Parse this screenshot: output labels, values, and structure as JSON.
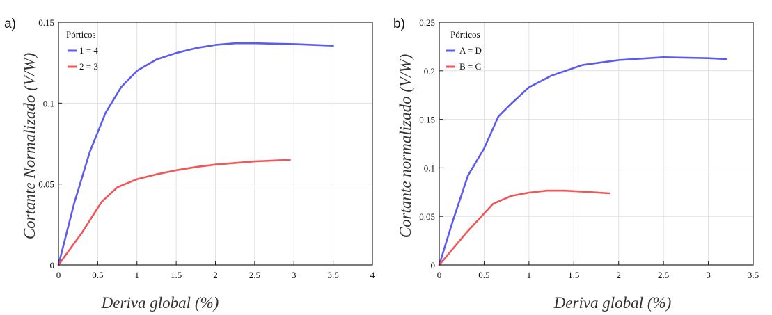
{
  "chart_data": [
    {
      "type": "line",
      "panel_label": "a)",
      "xlabel": "Deriva global  (%)",
      "ylabel": "Cortante Normalizado   (V/W)",
      "xlim": [
        0,
        4
      ],
      "ylim": [
        0,
        0.15
      ],
      "xticks": [
        0,
        0.5,
        1,
        1.5,
        2,
        2.5,
        3,
        3.5,
        4
      ],
      "xtick_labels": [
        "0",
        "0.5",
        "1",
        "1.5",
        "2",
        "2.5",
        "3",
        "3.5",
        "4"
      ],
      "yticks": [
        0,
        0.05,
        0.1,
        0.15
      ],
      "ytick_labels": [
        "0",
        "0.05",
        "0.1",
        "0.15"
      ],
      "grid": true,
      "legend": {
        "title": "Pórticos",
        "position": "top-left"
      },
      "series": [
        {
          "name": "1 = 4",
          "color": "#5b5bf2",
          "x": [
            0,
            0.2,
            0.4,
            0.6,
            0.8,
            1.0,
            1.25,
            1.5,
            1.75,
            2.0,
            2.25,
            2.5,
            3.0,
            3.5
          ],
          "y": [
            0,
            0.038,
            0.07,
            0.094,
            0.11,
            0.12,
            0.127,
            0.131,
            0.134,
            0.136,
            0.137,
            0.137,
            0.1365,
            0.1355
          ]
        },
        {
          "name": "2 = 3",
          "color": "#f25555",
          "x": [
            0,
            0.3,
            0.55,
            0.75,
            1.0,
            1.25,
            1.5,
            1.75,
            2.0,
            2.5,
            2.95
          ],
          "y": [
            0,
            0.02,
            0.039,
            0.048,
            0.053,
            0.056,
            0.0585,
            0.0605,
            0.062,
            0.064,
            0.065
          ]
        }
      ]
    },
    {
      "type": "line",
      "panel_label": "b)",
      "xlabel": "Deriva global  (%)",
      "ylabel": "Cortante normalizado   (V/W)",
      "xlim": [
        0,
        3.5
      ],
      "ylim": [
        0,
        0.25
      ],
      "xticks": [
        0,
        0.5,
        1,
        1.5,
        2,
        2.5,
        3,
        3.5
      ],
      "xtick_labels": [
        "0",
        "0.5",
        "1",
        "1.5",
        "2",
        "2.5",
        "3",
        "3.5"
      ],
      "yticks": [
        0,
        0.05,
        0.1,
        0.15,
        0.2,
        0.25
      ],
      "ytick_labels": [
        "0",
        "0.05",
        "0.1",
        "0.15",
        "0.2",
        "0.25"
      ],
      "grid": true,
      "legend": {
        "title": "Pórticos",
        "position": "top-left"
      },
      "series": [
        {
          "name": "A = D",
          "color": "#5b5bf2",
          "x": [
            0,
            0.15,
            0.32,
            0.5,
            0.66,
            0.8,
            1.0,
            1.25,
            1.6,
            2.0,
            2.5,
            3.0,
            3.2
          ],
          "y": [
            0,
            0.045,
            0.092,
            0.12,
            0.153,
            0.166,
            0.183,
            0.195,
            0.206,
            0.211,
            0.214,
            0.213,
            0.212
          ]
        },
        {
          "name": "B = C",
          "color": "#f25555",
          "x": [
            0,
            0.3,
            0.6,
            0.8,
            1.0,
            1.2,
            1.4,
            1.6,
            1.9
          ],
          "y": [
            0,
            0.033,
            0.063,
            0.071,
            0.0745,
            0.0765,
            0.0765,
            0.0755,
            0.0738
          ]
        }
      ]
    }
  ]
}
